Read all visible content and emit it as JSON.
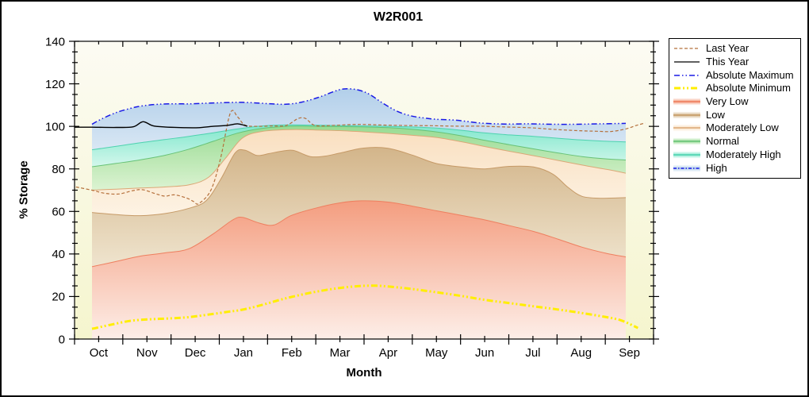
{
  "figure": {
    "title": "W2R001",
    "x_axis_label": "Month",
    "y_axis_label": "% Storage"
  },
  "chart_data": {
    "type": "area",
    "title": "W2R001",
    "xlabel": "Month",
    "ylabel": "% Storage",
    "x_categories": [
      "Oct",
      "Nov",
      "Dec",
      "Jan",
      "Feb",
      "Mar",
      "Apr",
      "May",
      "Jun",
      "Jul",
      "Aug",
      "Sep"
    ],
    "ylim": [
      0,
      140
    ],
    "y_major_tick": 20,
    "y_minor_tick": 5,
    "grid": false,
    "legend_position": "right-outside",
    "plot_bg_top": "#FCFBF3",
    "plot_bg_bottom": "#F5F5CE",
    "bands": [
      {
        "name": "Very Low",
        "key": "very_low",
        "fill_top": "#F49D7F",
        "fill_bottom": "#FDEEE8",
        "edge": "#EE7F5F",
        "points": [
          [
            0,
            34
          ],
          [
            0.5,
            36.5
          ],
          [
            1,
            39
          ],
          [
            1.5,
            40.5
          ],
          [
            2,
            42.5
          ],
          [
            2.5,
            49.5
          ],
          [
            2.9,
            56
          ],
          [
            3.1,
            57.2
          ],
          [
            3.45,
            54.5
          ],
          [
            3.75,
            53.6
          ],
          [
            4.1,
            58
          ],
          [
            4.6,
            61.5
          ],
          [
            5.1,
            64
          ],
          [
            5.55,
            65
          ],
          [
            6.1,
            64.4
          ],
          [
            6.6,
            62.5
          ],
          [
            7.1,
            60.3
          ],
          [
            7.6,
            58.2
          ],
          [
            8.1,
            56
          ],
          [
            8.6,
            53.3
          ],
          [
            9.1,
            50.6
          ],
          [
            9.6,
            47
          ],
          [
            10.1,
            43.2
          ],
          [
            10.6,
            40.3
          ],
          [
            11,
            38.6
          ]
        ]
      },
      {
        "name": "Low",
        "key": "low",
        "fill_top": "#D3B58A",
        "fill_bottom": "#EFE4CE",
        "edge": "#C69A67",
        "points": [
          [
            0,
            59.5
          ],
          [
            0.5,
            58.5
          ],
          [
            1,
            58
          ],
          [
            1.5,
            59
          ],
          [
            2,
            61.5
          ],
          [
            2.35,
            65
          ],
          [
            2.65,
            75
          ],
          [
            2.95,
            87.5
          ],
          [
            3.15,
            88.8
          ],
          [
            3.4,
            86.3
          ],
          [
            3.65,
            87.2
          ],
          [
            3.9,
            88.3
          ],
          [
            4.15,
            88.7
          ],
          [
            4.5,
            85.8
          ],
          [
            4.8,
            86
          ],
          [
            5.1,
            87.4
          ],
          [
            5.6,
            89.8
          ],
          [
            6.1,
            89.7
          ],
          [
            6.6,
            86.5
          ],
          [
            7.1,
            82.5
          ],
          [
            7.7,
            80.7
          ],
          [
            8.1,
            80
          ],
          [
            8.6,
            81.2
          ],
          [
            9.1,
            80.9
          ],
          [
            9.5,
            77.5
          ],
          [
            9.8,
            71.5
          ],
          [
            10.1,
            67.1
          ],
          [
            10.5,
            66.2
          ],
          [
            11,
            66.5
          ]
        ]
      },
      {
        "name": "Moderately Low",
        "key": "mod_low",
        "fill_top": "#F9DFC0",
        "fill_bottom": "#FDF3E4",
        "edge": "#DBA877",
        "points": [
          [
            0,
            70
          ],
          [
            0.5,
            70.5
          ],
          [
            1,
            71
          ],
          [
            1.5,
            71.5
          ],
          [
            2,
            72.5
          ],
          [
            2.4,
            76
          ],
          [
            2.75,
            85
          ],
          [
            3.1,
            94.5
          ],
          [
            3.5,
            97.6
          ],
          [
            4.1,
            98.5
          ],
          [
            4.6,
            98.3
          ],
          [
            5.1,
            98
          ],
          [
            5.6,
            97.4
          ],
          [
            6.1,
            96.7
          ],
          [
            6.6,
            95.8
          ],
          [
            7.1,
            94.8
          ],
          [
            7.6,
            92.8
          ],
          [
            8.1,
            90.5
          ],
          [
            8.6,
            88.3
          ],
          [
            9.1,
            86.2
          ],
          [
            9.6,
            84
          ],
          [
            10.1,
            81.8
          ],
          [
            10.6,
            79.8
          ],
          [
            11,
            78
          ]
        ]
      },
      {
        "name": "Normal",
        "key": "normal",
        "fill_top": "#98DB92",
        "fill_bottom": "#DCF3D2",
        "edge": "#67C277",
        "points": [
          [
            0,
            81
          ],
          [
            0.5,
            82.6
          ],
          [
            1,
            84.3
          ],
          [
            1.5,
            86.4
          ],
          [
            2,
            89.3
          ],
          [
            2.5,
            93
          ],
          [
            3,
            96.8
          ],
          [
            3.5,
            99
          ],
          [
            4.1,
            100.1
          ],
          [
            4.6,
            100
          ],
          [
            5.1,
            99.9
          ],
          [
            5.6,
            99.7
          ],
          [
            6.1,
            99.4
          ],
          [
            6.6,
            98.6
          ],
          [
            7.1,
            97.4
          ],
          [
            7.6,
            95.6
          ],
          [
            8.1,
            93.4
          ],
          [
            8.6,
            91.4
          ],
          [
            9.1,
            89.4
          ],
          [
            9.6,
            87.5
          ],
          [
            10.1,
            85.8
          ],
          [
            10.6,
            84.7
          ],
          [
            11,
            84.2
          ]
        ]
      },
      {
        "name": "Moderately High",
        "key": "mod_high",
        "fill_top": "#7FE7CC",
        "fill_bottom": "#D4F7EC",
        "edge": "#4ED2AF",
        "points": [
          [
            0,
            89
          ],
          [
            0.5,
            90.6
          ],
          [
            1,
            92.3
          ],
          [
            1.5,
            93.8
          ],
          [
            2,
            95.3
          ],
          [
            2.5,
            97
          ],
          [
            3,
            98.8
          ],
          [
            3.5,
            100.2
          ],
          [
            4.1,
            100.7
          ],
          [
            5.1,
            100.4
          ],
          [
            6.1,
            100
          ],
          [
            6.6,
            99.7
          ],
          [
            7.1,
            99.2
          ],
          [
            7.6,
            98.2
          ],
          [
            8.1,
            96.9
          ],
          [
            8.6,
            96
          ],
          [
            9.1,
            95.3
          ],
          [
            9.6,
            94.4
          ],
          [
            10.1,
            93.6
          ],
          [
            10.6,
            93
          ],
          [
            11,
            92.7
          ]
        ]
      },
      {
        "name": "High",
        "key": "high",
        "fill_top": "#B2CFEA",
        "fill_bottom": "#D9E7F4",
        "edge": "#1A1AE6",
        "edge_width": 1.5,
        "edge_dash": "7 3 1.5 3 1.5 3",
        "points": [
          [
            0,
            101
          ],
          [
            0.2,
            103.5
          ],
          [
            0.5,
            106.5
          ],
          [
            0.8,
            108.5
          ],
          [
            1,
            109.5
          ],
          [
            1.3,
            110.3
          ],
          [
            1.6,
            110.6
          ],
          [
            2,
            110.6
          ],
          [
            2.4,
            110.9
          ],
          [
            2.8,
            111.2
          ],
          [
            3.1,
            111.3
          ],
          [
            3.4,
            111
          ],
          [
            3.7,
            110.6
          ],
          [
            4,
            110.4
          ],
          [
            4.3,
            111.3
          ],
          [
            4.65,
            113.5
          ],
          [
            5,
            116.5
          ],
          [
            5.2,
            117.6
          ],
          [
            5.45,
            117.3
          ],
          [
            5.7,
            115.3
          ],
          [
            6,
            110.8
          ],
          [
            6.3,
            107
          ],
          [
            6.6,
            104.8
          ],
          [
            6.9,
            103.8
          ],
          [
            7.1,
            103.3
          ],
          [
            7.5,
            102.9
          ],
          [
            8,
            101.6
          ],
          [
            8.5,
            101.1
          ],
          [
            9,
            101.2
          ],
          [
            9.5,
            101
          ],
          [
            10,
            101
          ],
          [
            10.5,
            101.2
          ],
          [
            11,
            101.4
          ]
        ]
      }
    ],
    "lines": [
      {
        "name": "Absolute Minimum",
        "key": "abs_min",
        "color": "#FFEE00",
        "width": 3,
        "dash": "8 3 2 3 2 3",
        "points": [
          [
            0,
            4.8
          ],
          [
            0.4,
            6.8
          ],
          [
            0.8,
            8.6
          ],
          [
            1.2,
            9.3
          ],
          [
            1.6,
            9.7
          ],
          [
            2,
            10.3
          ],
          [
            2.4,
            11.5
          ],
          [
            2.8,
            12.8
          ],
          [
            3.1,
            13.8
          ],
          [
            3.5,
            16
          ],
          [
            3.9,
            18.6
          ],
          [
            4.3,
            20.8
          ],
          [
            4.7,
            22.6
          ],
          [
            5.1,
            24
          ],
          [
            5.5,
            24.9
          ],
          [
            5.85,
            25.1
          ],
          [
            6.1,
            24.7
          ],
          [
            6.5,
            23.8
          ],
          [
            7.1,
            22
          ],
          [
            7.6,
            20.3
          ],
          [
            8.1,
            18.4
          ],
          [
            8.6,
            16.9
          ],
          [
            9.1,
            15.4
          ],
          [
            9.6,
            13.9
          ],
          [
            10.1,
            12.2
          ],
          [
            10.6,
            10.3
          ],
          [
            10.9,
            8.8
          ],
          [
            11.15,
            6.3
          ],
          [
            11.25,
            5.2
          ]
        ]
      },
      {
        "name": "Last Year",
        "key": "last_year",
        "color": "#B5703B",
        "width": 1.2,
        "dash": "4 2.5",
        "points": [
          [
            -0.33,
            71.5
          ],
          [
            0,
            70
          ],
          [
            0.25,
            68.6
          ],
          [
            0.55,
            68.2
          ],
          [
            0.85,
            69.8
          ],
          [
            1.05,
            70.2
          ],
          [
            1.3,
            68.4
          ],
          [
            1.5,
            67.2
          ],
          [
            1.7,
            67.8
          ],
          [
            1.95,
            66.3
          ],
          [
            2.1,
            64.6
          ],
          [
            2.2,
            63.7
          ],
          [
            2.45,
            70
          ],
          [
            2.65,
            85
          ],
          [
            2.85,
            106.3
          ],
          [
            3,
            104.5
          ],
          [
            3.15,
            100.6
          ],
          [
            3.4,
            100
          ],
          [
            3.7,
            100.2
          ],
          [
            4,
            100.4
          ],
          [
            4.25,
            103.7
          ],
          [
            4.4,
            103.7
          ],
          [
            4.6,
            100.4
          ],
          [
            5,
            100.5
          ],
          [
            5.5,
            100.9
          ],
          [
            6,
            100.6
          ],
          [
            6.5,
            100.4
          ],
          [
            7,
            100.3
          ],
          [
            7.5,
            100.1
          ],
          [
            8,
            100.1
          ],
          [
            8.5,
            99.7
          ],
          [
            9,
            99.4
          ],
          [
            9.5,
            98.6
          ],
          [
            10,
            98
          ],
          [
            10.4,
            97.7
          ],
          [
            10.7,
            97.6
          ],
          [
            11,
            98.8
          ],
          [
            11.2,
            100.3
          ],
          [
            11.4,
            101.6
          ]
        ]
      },
      {
        "name": "This Year",
        "key": "this_year",
        "color": "#000000",
        "width": 1.4,
        "dash": "",
        "points": [
          [
            -0.36,
            99.6
          ],
          [
            0,
            99.6
          ],
          [
            0.5,
            99.5
          ],
          [
            0.85,
            99.8
          ],
          [
            1.05,
            102.2
          ],
          [
            1.25,
            100.3
          ],
          [
            1.5,
            99.7
          ],
          [
            1.9,
            99.4
          ],
          [
            2.2,
            99.4
          ],
          [
            2.5,
            100
          ],
          [
            2.8,
            100.5
          ],
          [
            3,
            101.2
          ],
          [
            3.2,
            100.1
          ]
        ]
      }
    ],
    "legend": {
      "items": [
        {
          "label": "Last Year",
          "swatch": {
            "kind": "line",
            "color": "#B5703B",
            "width": 1.2,
            "dash": "4 2.5"
          }
        },
        {
          "label": "This Year",
          "swatch": {
            "kind": "line",
            "color": "#000000",
            "width": 1.2,
            "dash": ""
          }
        },
        {
          "label": "Absolute Maximum",
          "swatch": {
            "kind": "line",
            "color": "#1A1AE6",
            "width": 1.5,
            "dash": "7 3 1.5 3 1.5 3"
          }
        },
        {
          "label": "Absolute Minimum",
          "swatch": {
            "kind": "line",
            "color": "#FFEE00",
            "width": 3,
            "dash": "8 3 2 3 2 3"
          }
        },
        {
          "label": "Very Low",
          "swatch": {
            "kind": "band",
            "color": "#F49D7F",
            "line": "#EE7F5F"
          }
        },
        {
          "label": "Low",
          "swatch": {
            "kind": "band",
            "color": "#D3B58A",
            "line": "#C69A67"
          }
        },
        {
          "label": "Moderately Low",
          "swatch": {
            "kind": "band",
            "color": "#F9DFC0",
            "line": "#DBA877"
          }
        },
        {
          "label": "Normal",
          "swatch": {
            "kind": "band",
            "color": "#98DB92",
            "line": "#67C277"
          }
        },
        {
          "label": "Moderately High",
          "swatch": {
            "kind": "band",
            "color": "#7FE7CC",
            "line": "#4ED2AF"
          }
        },
        {
          "label": "High",
          "swatch": {
            "kind": "band",
            "color": "#B2CFEA",
            "line": "#1A1AE6",
            "line_dash": "4 2 1.5 2"
          }
        }
      ]
    }
  }
}
